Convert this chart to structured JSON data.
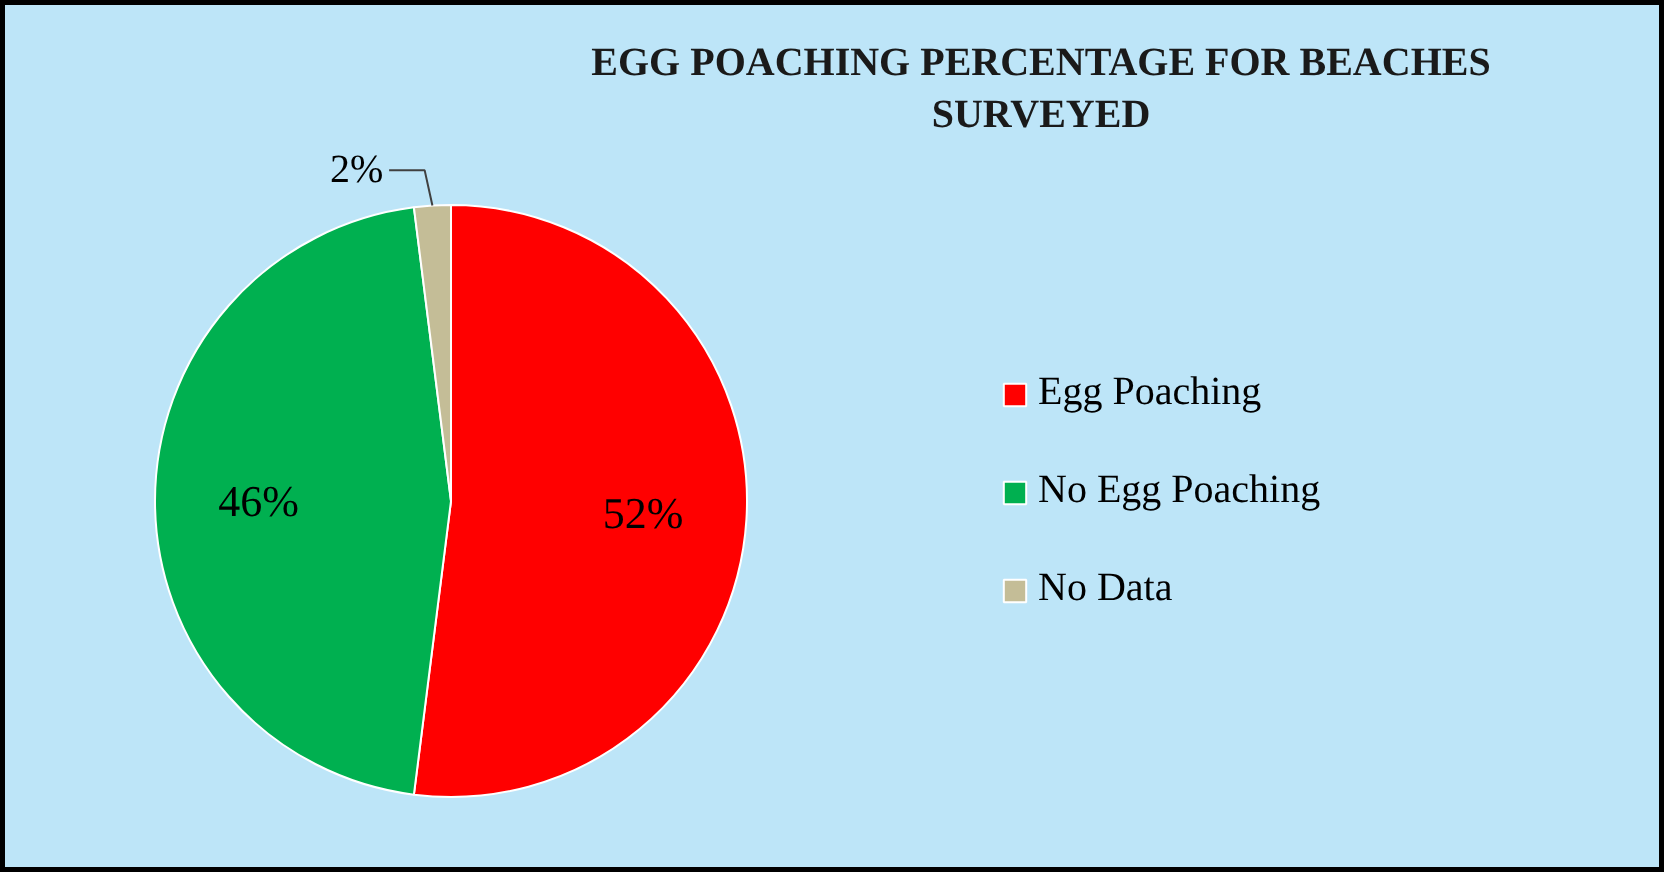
{
  "chart_data": {
    "type": "pie",
    "title": "EGG POACHING PERCENTAGE FOR BEACHES SURVEYED",
    "categories": [
      "Egg Poaching",
      "No Egg Poaching",
      "No Data"
    ],
    "values": [
      52,
      46,
      2
    ],
    "colors": [
      "#ff0000",
      "#00b050",
      "#c4bd97"
    ],
    "value_labels": [
      "52%",
      "46%",
      "2%"
    ],
    "legend": "right"
  }
}
